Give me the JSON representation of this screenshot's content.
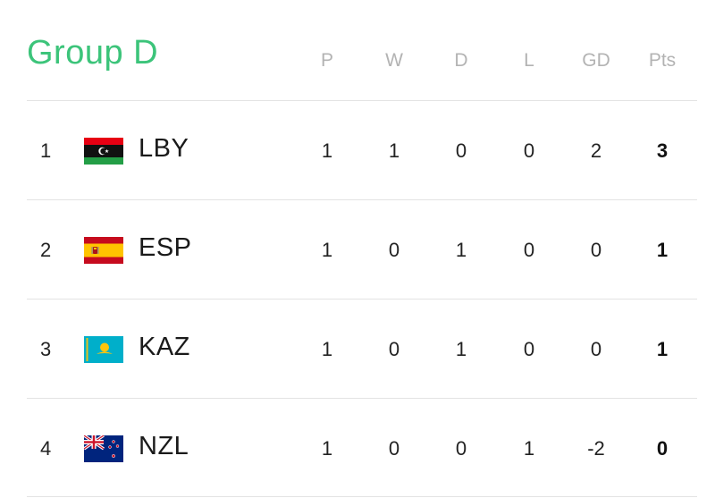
{
  "title": "Group D",
  "columns": [
    "P",
    "W",
    "D",
    "L",
    "GD",
    "Pts"
  ],
  "rows": [
    {
      "rank": "1",
      "team": "LBY",
      "flag_icon": "libya-flag-icon",
      "stats": [
        "1",
        "1",
        "0",
        "0",
        "2",
        "3"
      ]
    },
    {
      "rank": "2",
      "team": "ESP",
      "flag_icon": "spain-flag-icon",
      "stats": [
        "1",
        "0",
        "1",
        "0",
        "0",
        "1"
      ]
    },
    {
      "rank": "3",
      "team": "KAZ",
      "flag_icon": "kazakhstan-flag-icon",
      "stats": [
        "1",
        "0",
        "1",
        "0",
        "0",
        "1"
      ]
    },
    {
      "rank": "4",
      "team": "NZL",
      "flag_icon": "new-zealand-flag-icon",
      "stats": [
        "1",
        "0",
        "0",
        "1",
        "-2",
        "0"
      ]
    }
  ],
  "colors": {
    "title": "#3cc47a",
    "header_text": "#b3b3b3",
    "divider": "#e3e3e3"
  }
}
